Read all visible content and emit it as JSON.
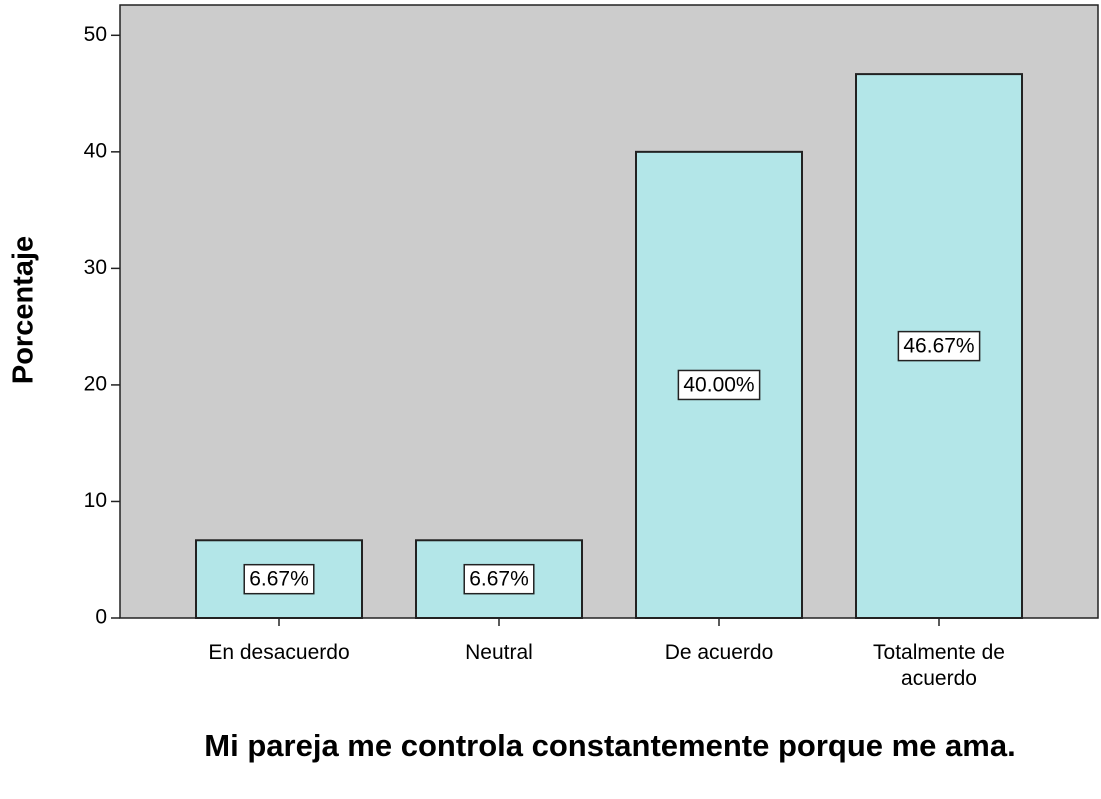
{
  "chart_data": {
    "type": "bar",
    "title": "Mi pareja me controla constantemente porque me ama.",
    "y_label": "Porcentaje",
    "categories": [
      "En desacuerdo",
      "Neutral",
      "De acuerdo",
      "Totalmente de acuerdo"
    ],
    "values": [
      6.67,
      6.67,
      40.0,
      46.67
    ],
    "value_labels": [
      "6.67%",
      "6.67%",
      "40.00%",
      "46.67%"
    ],
    "color": "#b3e6e8",
    "ylim": [
      0,
      52.6
    ],
    "yticks": [
      0,
      10,
      20,
      30,
      40,
      50
    ]
  }
}
